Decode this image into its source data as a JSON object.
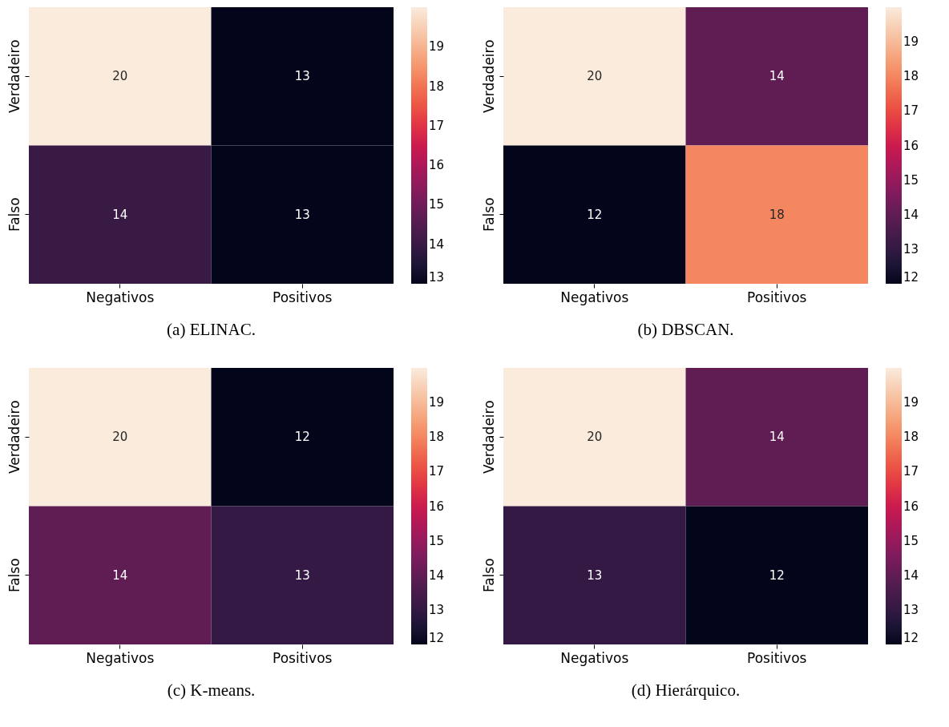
{
  "chart_data": [
    {
      "type": "heatmap",
      "title": "(a) ELINAC.",
      "data_labels": true,
      "categories": [
        "Negativos",
        "Positivos"
      ],
      "y_categories": [
        "Verdadeiro",
        "Falso"
      ],
      "cells": [
        [
          20,
          13
        ],
        [
          14,
          13
        ]
      ],
      "clim": [
        13,
        20
      ],
      "cticks": [
        13,
        14,
        15,
        16,
        17,
        18,
        19
      ]
    },
    {
      "type": "heatmap",
      "title": "(b) DBSCAN.",
      "data_labels": true,
      "categories": [
        "Negativos",
        "Positivos"
      ],
      "y_categories": [
        "Verdadeiro",
        "Falso"
      ],
      "cells": [
        [
          20,
          14
        ],
        [
          12,
          18
        ]
      ],
      "clim": [
        12,
        20
      ],
      "cticks": [
        12,
        13,
        14,
        15,
        16,
        17,
        18,
        19
      ]
    },
    {
      "type": "heatmap",
      "title": "(c) K-means.",
      "data_labels": true,
      "categories": [
        "Negativos",
        "Positivos"
      ],
      "y_categories": [
        "Verdadeiro",
        "Falso"
      ],
      "cells": [
        [
          20,
          12
        ],
        [
          14,
          13
        ]
      ],
      "clim": [
        12,
        20
      ],
      "cticks": [
        12,
        13,
        14,
        15,
        16,
        17,
        18,
        19
      ]
    },
    {
      "type": "heatmap",
      "title": "(d) Hierárquico.",
      "data_labels": true,
      "categories": [
        "Negativos",
        "Positivos"
      ],
      "y_categories": [
        "Verdadeiro",
        "Falso"
      ],
      "cells": [
        [
          20,
          14
        ],
        [
          13,
          12
        ]
      ],
      "clim": [
        12,
        20
      ],
      "cticks": [
        12,
        13,
        14,
        15,
        16,
        17,
        18,
        19
      ]
    }
  ]
}
